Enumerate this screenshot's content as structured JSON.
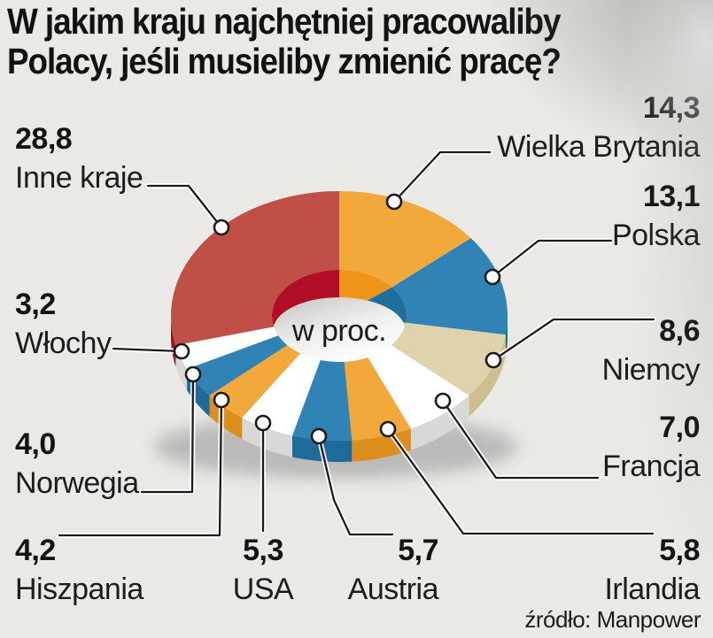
{
  "title": {
    "line1": "W jakim kraju najchętniej pracowaliby",
    "line2": "Polacy, jeśli musieliby zmienić pracę?"
  },
  "source": "źródło: Manpower",
  "chart_data": {
    "type": "pie",
    "subtype": "3d-donut",
    "unit": "percent",
    "center_text": "w proc.",
    "start_angle_deg": 0,
    "direction": "clockwise",
    "legend_position": "around-chart-with-leader-lines",
    "segments": [
      {
        "label": "Wielka Brytania",
        "value": 14.3,
        "display": "14,3",
        "color": "#f3a83c"
      },
      {
        "label": "Polska",
        "value": 13.1,
        "display": "13,1",
        "color": "#2f84b5"
      },
      {
        "label": "Niemcy",
        "value": 8.6,
        "display": "8,6",
        "color": "#ded3ad"
      },
      {
        "label": "Francja",
        "value": 7.0,
        "display": "7,0",
        "color": "#ffffff"
      },
      {
        "label": "Irlandia",
        "value": 5.8,
        "display": "5,8",
        "color": "#f3a83c"
      },
      {
        "label": "Austria",
        "value": 5.7,
        "display": "5,7",
        "color": "#2f84b5"
      },
      {
        "label": "USA",
        "value": 5.3,
        "display": "5,3",
        "color": "#ffffff"
      },
      {
        "label": "Hiszpania",
        "value": 4.2,
        "display": "4,2",
        "color": "#f3a83c"
      },
      {
        "label": "Norwegia",
        "value": 4.0,
        "display": "4,0",
        "color": "#2f84b5"
      },
      {
        "label": "Włochy",
        "value": 3.2,
        "display": "3,2",
        "color": "#ffffff"
      },
      {
        "label": "Inne kraje",
        "value": 28.8,
        "display": "28,8",
        "color": "#c04f48"
      }
    ]
  }
}
